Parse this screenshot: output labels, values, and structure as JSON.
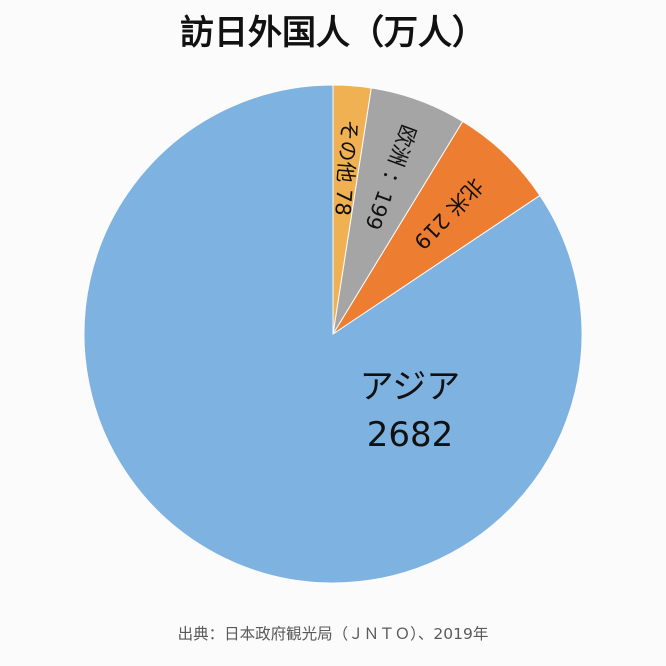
{
  "chart_data": {
    "type": "pie",
    "title": "訪日外国人（万人）",
    "start_angle_deg": 0,
    "direction": "counterclockwise",
    "slices": [
      {
        "label": "アジア",
        "value": 2682,
        "display": "2682",
        "color": "#7eb2e0"
      },
      {
        "label": "北米",
        "value": 219,
        "display": "219",
        "color": "#ed7d31"
      },
      {
        "label": "欧洲",
        "value": 199,
        "display": "：199",
        "color": "#a5a5a5"
      },
      {
        "label": "その他",
        "value": 78,
        "display": "78",
        "color": "#f0b152"
      }
    ]
  },
  "source": "出典：日本政府観光局（ＪＮＴＯ）、2019年"
}
